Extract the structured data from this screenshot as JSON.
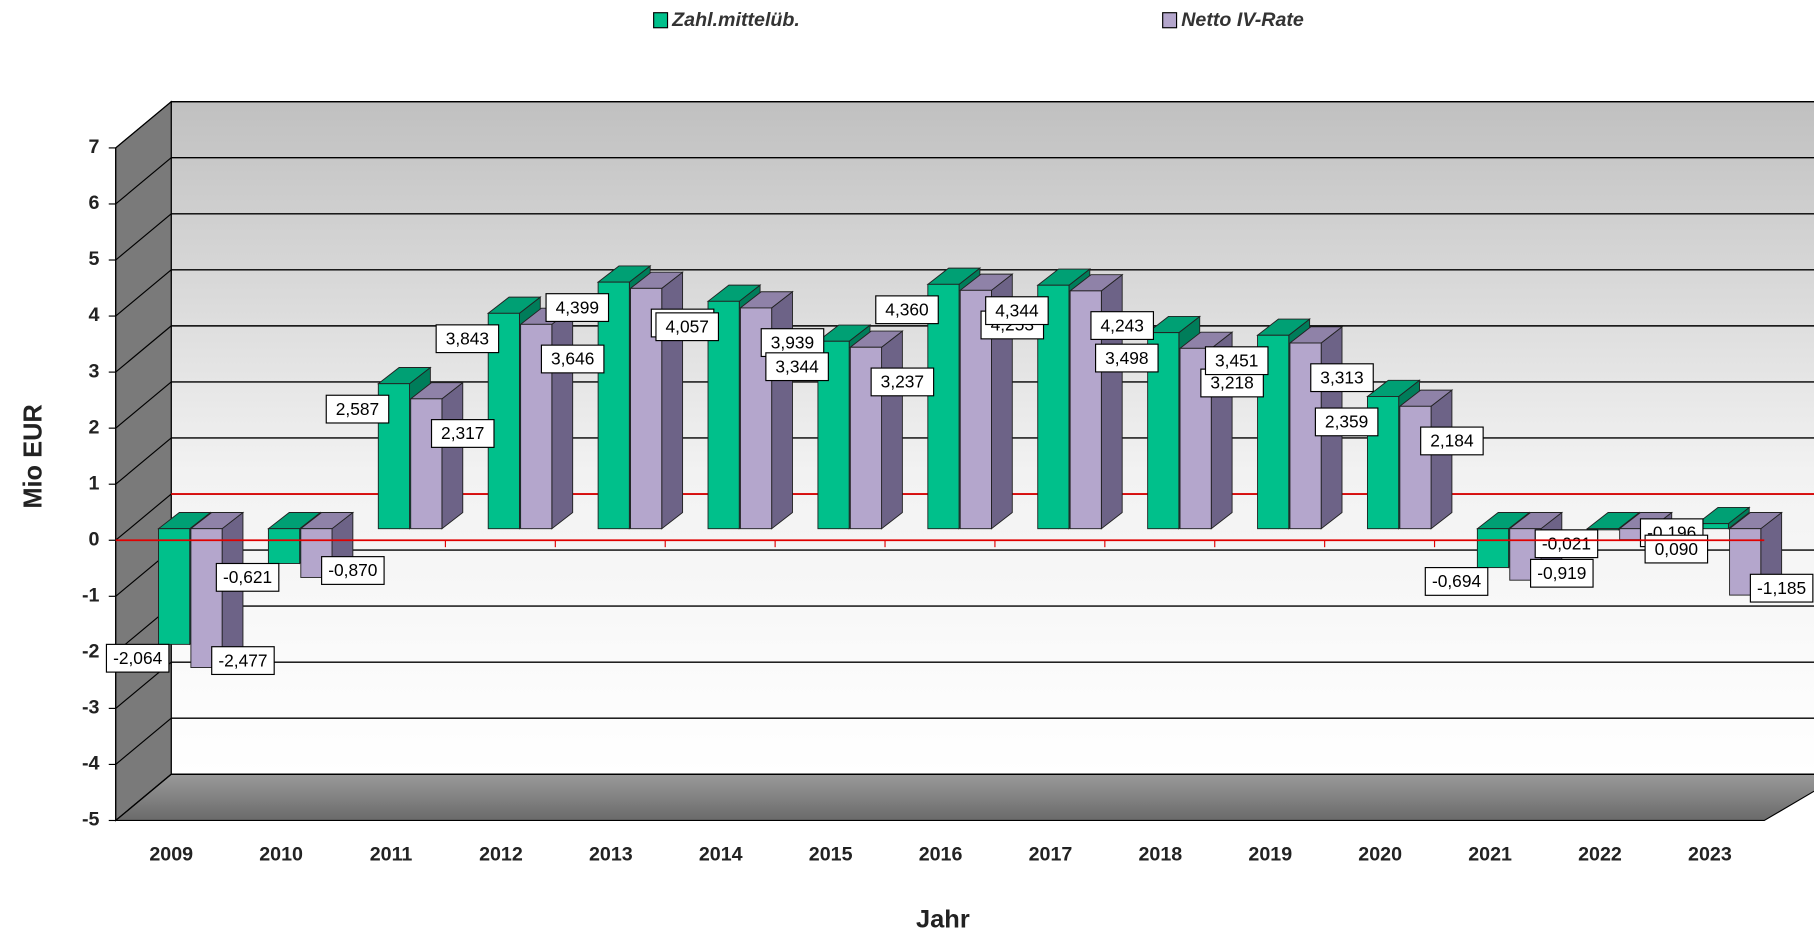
{
  "chart_data": {
    "type": "bar3d",
    "x_label": "Jahr",
    "y_label": "Mio EUR",
    "categories": [
      "2009",
      "2010",
      "2011",
      "2012",
      "2013",
      "2014",
      "2015",
      "2016",
      "2017",
      "2018",
      "2019",
      "2020",
      "2021",
      "2022",
      "2023"
    ],
    "series": [
      {
        "name": "Zahl.mittelüb.",
        "color": "#00c08b",
        "values": [
          -2.064,
          -0.621,
          2.587,
          3.843,
          4.399,
          4.057,
          3.344,
          4.36,
          4.344,
          3.498,
          3.451,
          2.359,
          -0.694,
          -0.021,
          0.09
        ],
        "value_labels": [
          "-2,064",
          "-0,621",
          "2,587",
          "3,843",
          "4,399",
          "4,057",
          "3,344",
          "4,360",
          "4,344",
          "3,498",
          "3,451",
          "2,359",
          "-0,694",
          "-0,021",
          "0,090"
        ]
      },
      {
        "name": "Netto IV-Rate",
        "color": "#b4a6cc",
        "values": [
          -2.477,
          -0.87,
          2.317,
          3.646,
          4.288,
          3.939,
          3.237,
          4.253,
          4.243,
          3.218,
          3.313,
          2.184,
          -0.919,
          -0.196,
          -1.185
        ],
        "value_labels": [
          "-2,477",
          "-0,870",
          "2,317",
          "3,646",
          "4,288",
          "3,939",
          "3,237",
          "4,253",
          "4,243",
          "3,218",
          "3,313",
          "2,184",
          "-0,919",
          "-0,196",
          "-1,185"
        ]
      }
    ],
    "ylim": [
      -5,
      7
    ],
    "yticks": [
      -5,
      -4,
      -3,
      -2,
      -1,
      0,
      1,
      2,
      3,
      4,
      5,
      6,
      7
    ],
    "grid": true,
    "legend": "top"
  }
}
